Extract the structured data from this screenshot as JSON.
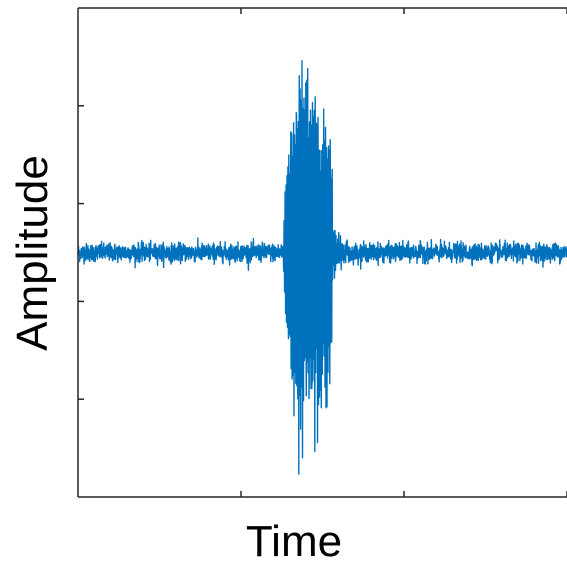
{
  "chart_data": {
    "type": "line",
    "title": "",
    "xlabel": "Time",
    "ylabel": "Amplitude",
    "x_tick_labels_visible": false,
    "y_tick_labels_visible": false,
    "grid": false,
    "legend": "none",
    "xlim": [
      0,
      1
    ],
    "ylim": [
      -1,
      1
    ],
    "series": [
      {
        "signal_shape": "baseline noise with a single high-amplitude oscillatory burst",
        "color": "#0072BD",
        "baseline_noise_amplitude": 0.04,
        "burst_start": 0.42,
        "burst_end": 0.52,
        "burst_peak_time": 0.45,
        "burst_peak_amplitude": 1.0,
        "post_burst_ringing_end": 0.56
      }
    ]
  }
}
